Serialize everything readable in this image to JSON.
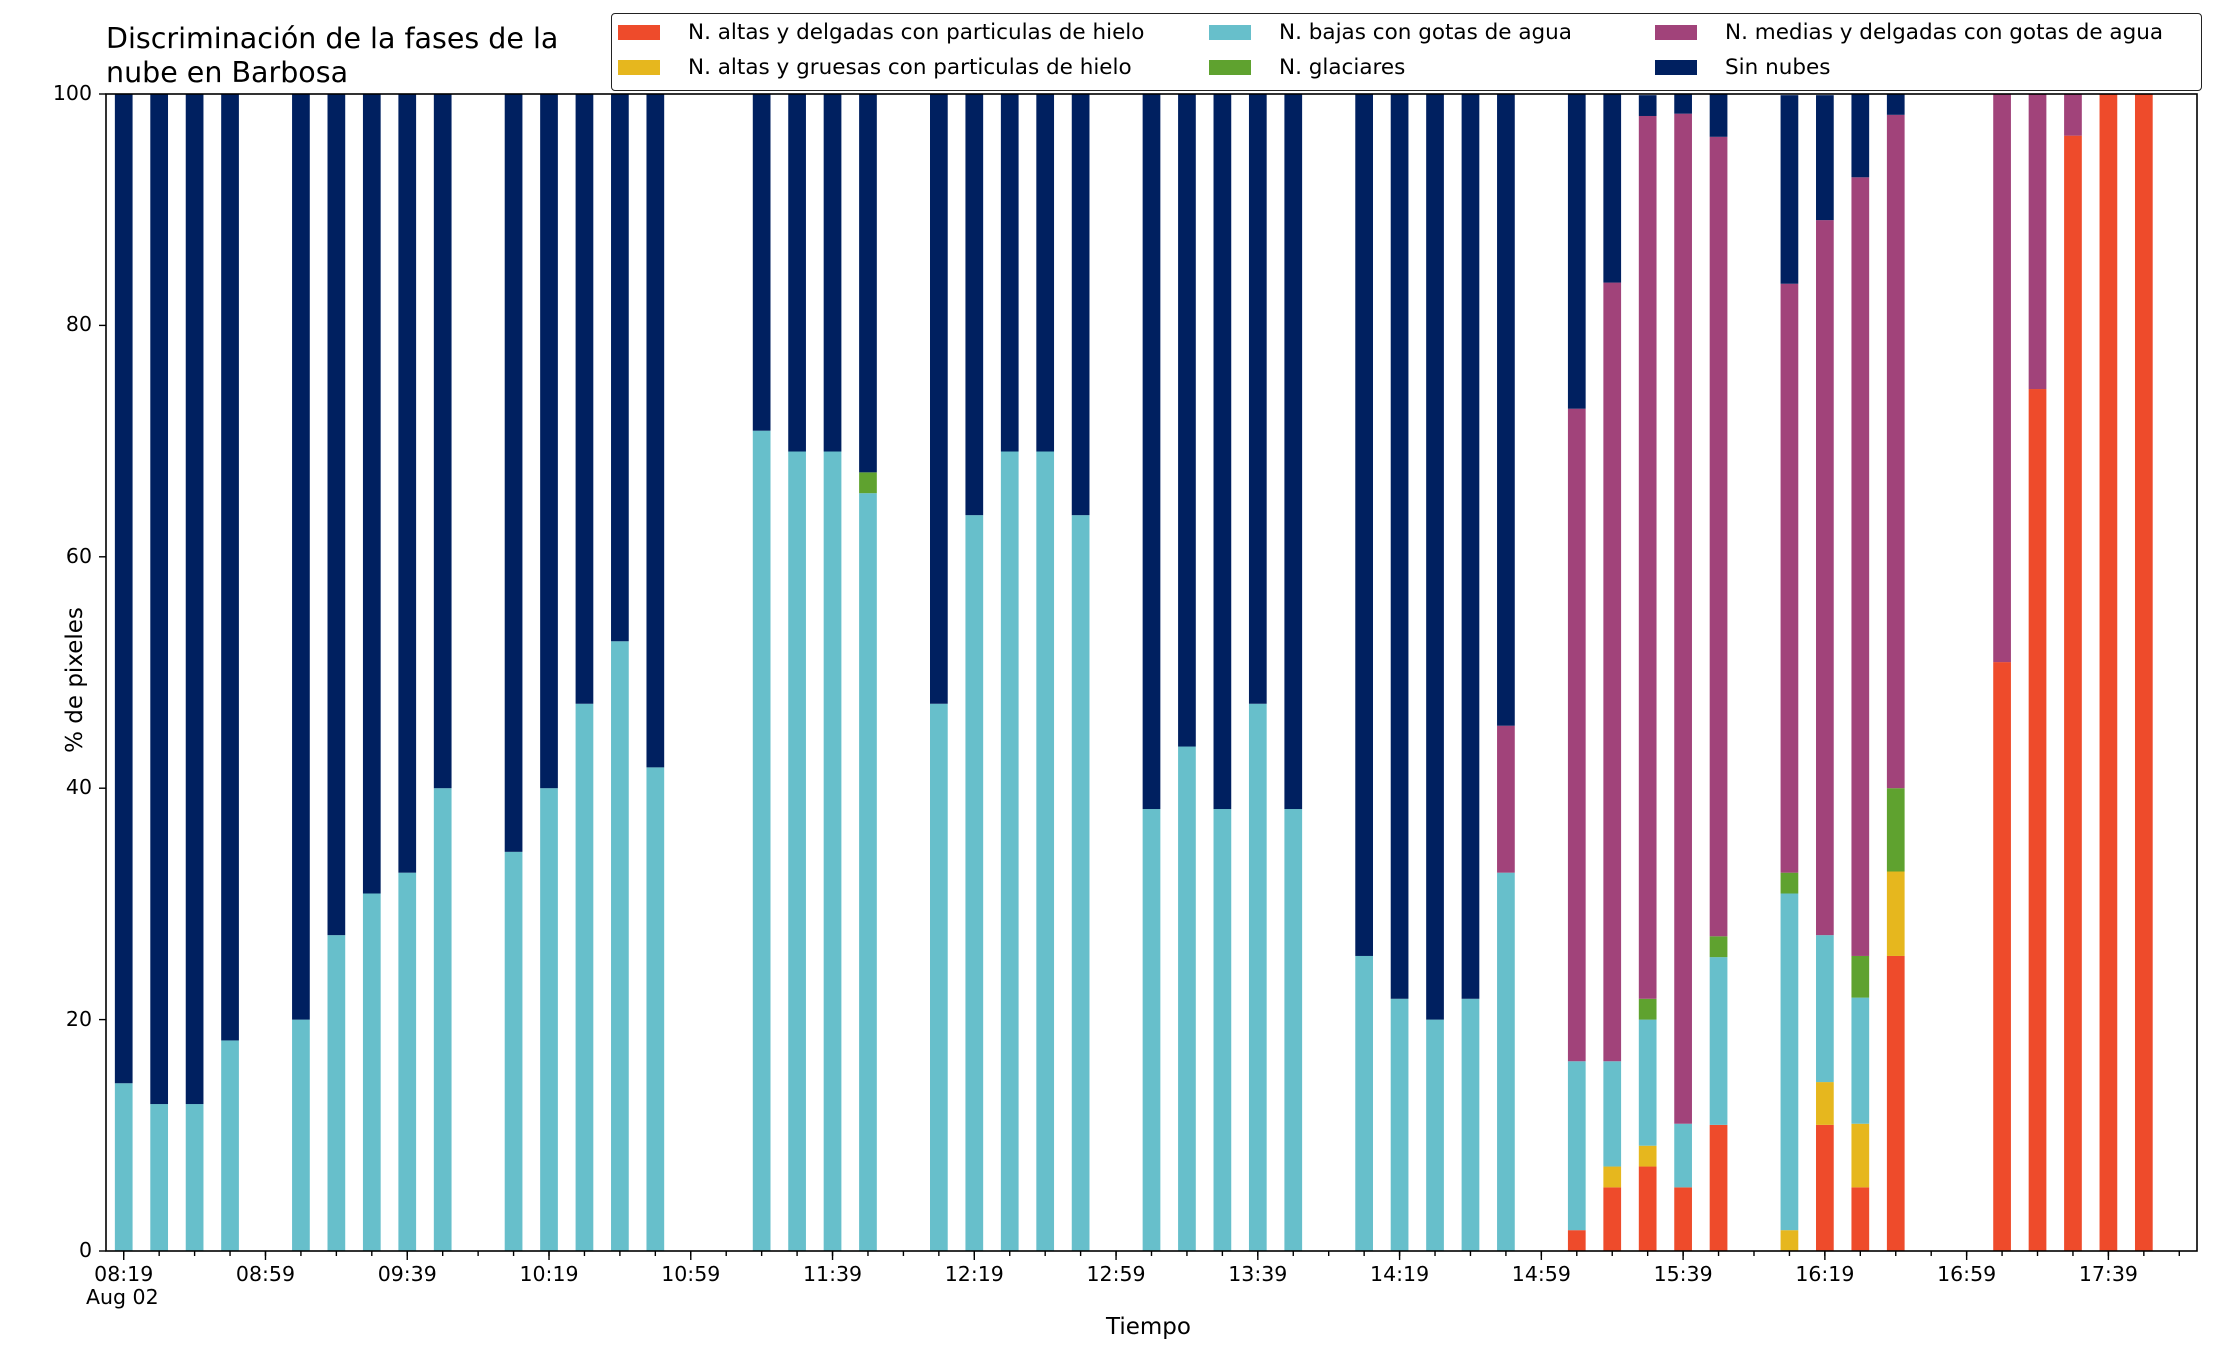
{
  "chart_data": {
    "type": "bar",
    "stacked": true,
    "title_lines": [
      "Discriminación de la fases de la",
      "nube en Barbosa"
    ],
    "xlabel": "Tiempo",
    "ylabel": "% de pixeles",
    "ylim": [
      0,
      100
    ],
    "yticks": [
      0,
      20,
      40,
      60,
      80,
      100
    ],
    "xlim": [
      "08:14",
      "18:04"
    ],
    "date_label": "Aug 02",
    "xtick_labels": [
      "08:19",
      "08:59",
      "09:39",
      "10:19",
      "10:59",
      "11:39",
      "12:19",
      "12:59",
      "13:39",
      "14:19",
      "14:59",
      "15:39",
      "16:19",
      "16:59",
      "17:39"
    ],
    "minor_tick_interval_minutes": 10,
    "bar_width_minutes": 5,
    "grid": false,
    "legend_position": "top-right",
    "times": [
      "08:19",
      "08:29",
      "08:39",
      "08:49",
      "09:09",
      "09:19",
      "09:29",
      "09:39",
      "09:49",
      "10:09",
      "10:19",
      "10:29",
      "10:39",
      "10:49",
      "11:19",
      "11:29",
      "11:39",
      "11:49",
      "12:09",
      "12:19",
      "12:29",
      "12:39",
      "12:49",
      "13:09",
      "13:19",
      "13:29",
      "13:39",
      "13:49",
      "14:09",
      "14:19",
      "14:29",
      "14:39",
      "14:49",
      "15:09",
      "15:19",
      "15:29",
      "15:39",
      "15:49",
      "16:09",
      "16:19",
      "16:29",
      "16:39",
      "17:09",
      "17:19",
      "17:29",
      "17:39",
      "17:49"
    ],
    "series": [
      {
        "name": "N. altas y delgadas con particulas de hielo",
        "color": "#ee4b2b",
        "values": [
          0,
          0,
          0,
          0,
          0,
          0,
          0,
          0,
          0,
          0,
          0,
          0,
          0,
          0,
          0,
          0,
          0,
          0,
          0,
          0,
          0,
          0,
          0,
          0,
          0,
          0,
          0,
          0,
          0,
          0,
          0,
          0,
          0,
          1.8,
          5.5,
          7.3,
          5.5,
          10.9,
          0,
          10.9,
          5.5,
          25.5,
          50.9,
          74.5,
          96.4,
          100,
          100
        ]
      },
      {
        "name": "N. altas y gruesas con particulas de hielo",
        "color": "#e6b71e",
        "values": [
          0,
          0,
          0,
          0,
          0,
          0,
          0,
          0,
          0,
          0,
          0,
          0,
          0,
          0,
          0,
          0,
          0,
          0,
          0,
          0,
          0,
          0,
          0,
          0,
          0,
          0,
          0,
          0,
          0,
          0,
          0,
          0,
          0,
          0,
          1.8,
          1.8,
          0,
          0,
          1.8,
          3.7,
          5.5,
          7.3,
          0,
          0,
          0,
          0,
          0
        ]
      },
      {
        "name": "N. bajas con gotas de agua",
        "color": "#67bfcb",
        "values": [
          14.5,
          12.7,
          12.7,
          18.2,
          20,
          27.3,
          30.9,
          32.7,
          40,
          34.5,
          40,
          47.3,
          52.7,
          41.8,
          70.9,
          69.1,
          69.1,
          65.5,
          47.3,
          63.6,
          69.1,
          69.1,
          63.6,
          38.2,
          43.6,
          38.2,
          47.3,
          38.2,
          25.5,
          21.8,
          20,
          21.8,
          32.7,
          14.6,
          9.1,
          10.9,
          5.5,
          14.5,
          29.1,
          12.7,
          10.9,
          0,
          0,
          0,
          0,
          0,
          0
        ]
      },
      {
        "name": "N. glaciares",
        "color": "#5fa22f",
        "values": [
          0,
          0,
          0,
          0,
          0,
          0,
          0,
          0,
          0,
          0,
          0,
          0,
          0,
          0,
          0,
          0,
          0,
          1.8,
          0,
          0,
          0,
          0,
          0,
          0,
          0,
          0,
          0,
          0,
          0,
          0,
          0,
          0,
          0,
          0,
          0,
          1.8,
          0,
          1.8,
          1.8,
          0,
          3.6,
          7.2,
          0,
          0,
          0,
          0,
          0
        ]
      },
      {
        "name": "N. medias y delgadas con gotas de agua",
        "color": "#a1437a",
        "values": [
          0,
          0,
          0,
          0,
          0,
          0,
          0,
          0,
          0,
          0,
          0,
          0,
          0,
          0,
          0,
          0,
          0,
          0,
          0,
          0,
          0,
          0,
          0,
          0,
          0,
          0,
          0,
          0,
          0,
          0,
          0,
          0,
          12.7,
          56.4,
          67.3,
          76.3,
          87.3,
          69.1,
          50.9,
          61.8,
          67.3,
          58.2,
          49.1,
          25.5,
          3.6,
          0,
          0
        ]
      },
      {
        "name": "Sin nubes",
        "color": "#002060",
        "values": [
          85.5,
          87.3,
          87.3,
          81.8,
          80,
          72.7,
          69.1,
          67.3,
          60,
          65.5,
          60,
          52.7,
          47.3,
          58.2,
          29.1,
          30.9,
          30.9,
          32.7,
          52.7,
          36.4,
          30.9,
          30.9,
          36.4,
          61.8,
          56.4,
          61.8,
          52.7,
          61.8,
          74.5,
          78.2,
          80,
          78.2,
          54.6,
          27.2,
          16.3,
          1.8,
          1.8,
          3.7,
          16.3,
          10.8,
          7.2,
          1.8,
          0,
          0,
          0,
          0,
          0
        ]
      }
    ]
  }
}
